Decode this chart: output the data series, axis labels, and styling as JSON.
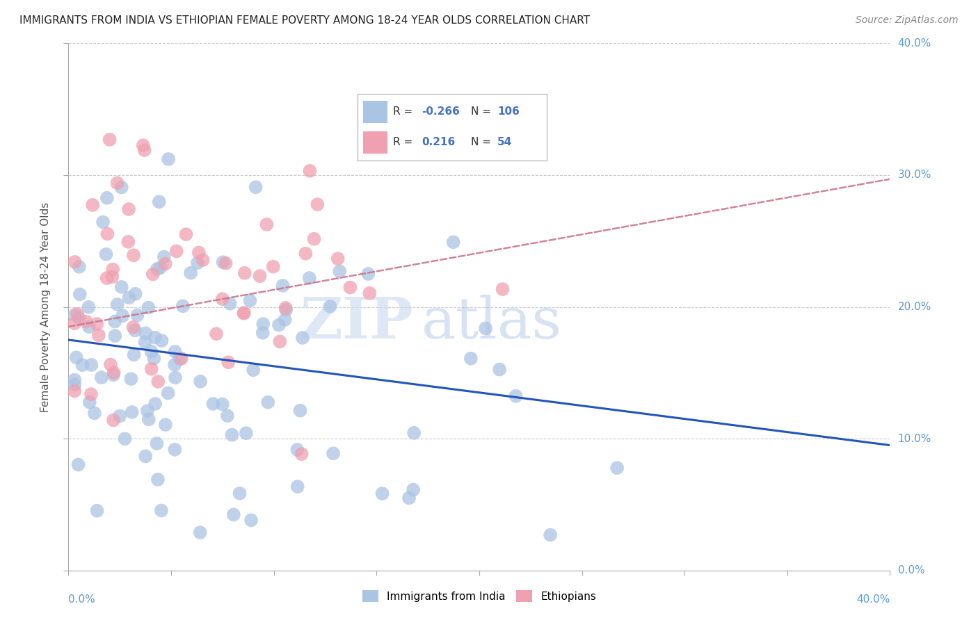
{
  "title": "IMMIGRANTS FROM INDIA VS ETHIOPIAN FEMALE POVERTY AMONG 18-24 YEAR OLDS CORRELATION CHART",
  "source": "Source: ZipAtlas.com",
  "ylabel": "Female Poverty Among 18-24 Year Olds",
  "ytick_vals": [
    0.0,
    0.1,
    0.2,
    0.3,
    0.4
  ],
  "ytick_labels": [
    "0.0%",
    "10.0%",
    "20.0%",
    "30.0%",
    "40.0%"
  ],
  "xmin": 0.0,
  "xmax": 0.4,
  "ymin": 0.0,
  "ymax": 0.4,
  "india_color": "#aac4e4",
  "ethiopia_color": "#f0a0b0",
  "india_line_color": "#2255bb",
  "ethiopia_line_color": "#cc7788",
  "india_R": -0.266,
  "india_N": 106,
  "ethiopia_R": 0.216,
  "ethiopia_N": 54,
  "watermark": "ZIPatlas",
  "axis_label_color": "#5b9bd5",
  "legend_R_color": "#4472c4",
  "background_color": "#ffffff",
  "title_color": "#222222",
  "source_color": "#888888",
  "legend_text_color": "#333333"
}
